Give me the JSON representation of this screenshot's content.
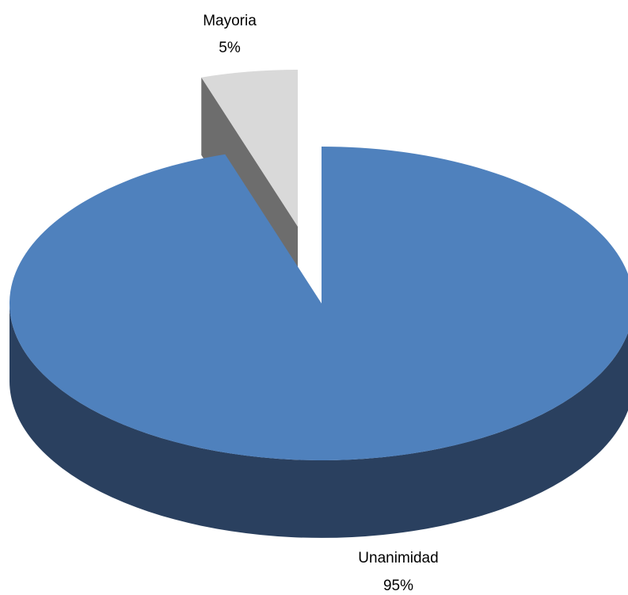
{
  "chart_data": {
    "type": "pie",
    "style": "3d-exploded",
    "slices": [
      {
        "label": "Unanimidad",
        "value": 95,
        "value_label": "95%",
        "color": "#4F81BD",
        "side_color": "#2A405F"
      },
      {
        "label": "Mayoria",
        "value": 5,
        "value_label": "5%",
        "color": "#D9D9D9",
        "side_color": "#6D6D6D",
        "exploded": true
      }
    ]
  }
}
